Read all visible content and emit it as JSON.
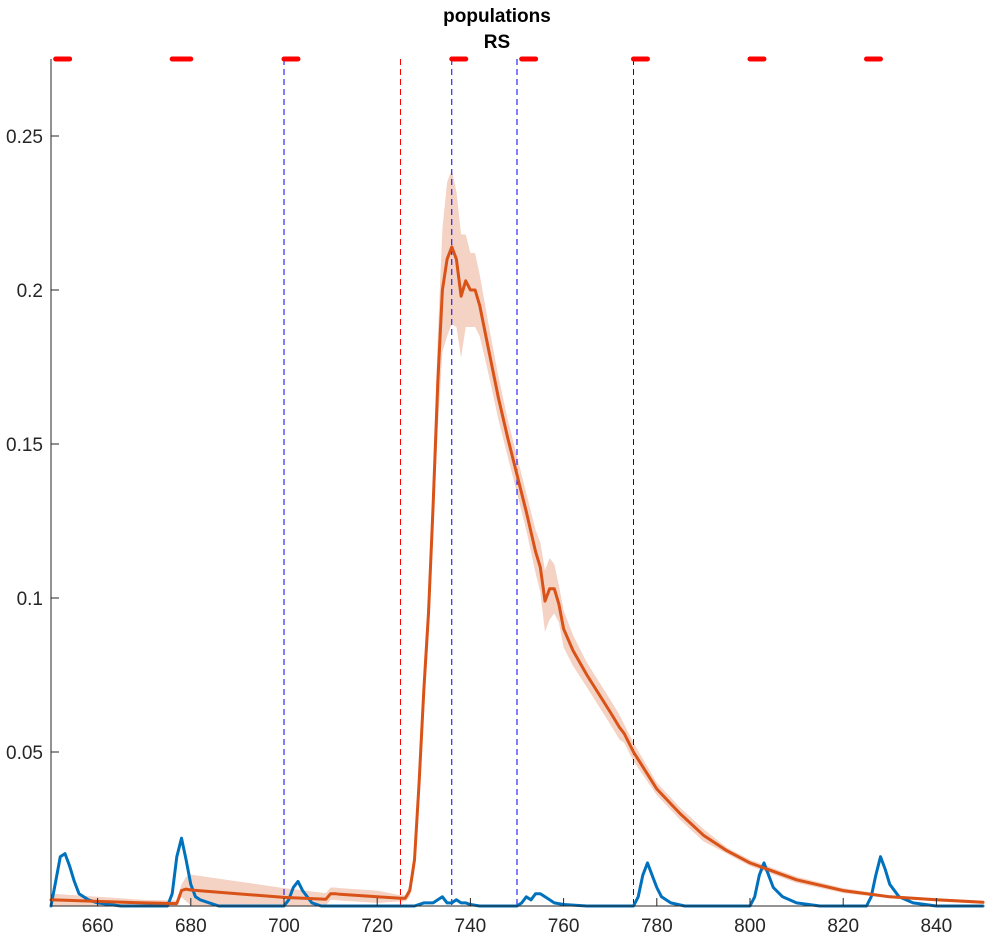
{
  "chart_data": {
    "type": "line",
    "title": "populations",
    "subtitle": "RS",
    "xlabel": "",
    "ylabel": "",
    "xlim": [
      650,
      850
    ],
    "ylim": [
      0,
      0.275
    ],
    "grid": false,
    "legend": "none",
    "x_ticks": [
      660,
      680,
      700,
      720,
      740,
      760,
      780,
      800,
      820,
      840
    ],
    "y_ticks": [
      0.05,
      0.1,
      0.15,
      0.2,
      0.25
    ],
    "y_tick_labels": [
      "0.05",
      "0.1",
      "0.15",
      "0.2",
      "0.25"
    ],
    "colors": {
      "blue_series": "#0072BD",
      "orange_series": "#D95319",
      "orange_band": "#F4D2C4",
      "stimulus_marker": "#FF0000",
      "vline_blue": "#0000FF",
      "vline_red": "#FF0000"
    },
    "vertical_lines": [
      {
        "x": 700,
        "color": "blue"
      },
      {
        "x": 725,
        "color": "red"
      },
      {
        "x": 736,
        "color": "blue"
      },
      {
        "x": 750,
        "color": "blue"
      },
      {
        "x": 775,
        "color": "blue"
      }
    ],
    "stimulus_markers": {
      "y": 0.275,
      "intervals": [
        [
          651,
          654
        ],
        [
          676,
          680
        ],
        [
          700,
          703
        ],
        [
          736,
          739
        ],
        [
          751,
          754
        ],
        [
          775,
          778
        ],
        [
          800,
          803
        ],
        [
          825,
          828
        ]
      ]
    },
    "series": [
      {
        "color": "blue",
        "x": [
          650,
          651,
          652,
          653,
          654,
          655,
          656,
          658,
          660,
          665,
          670,
          675,
          676,
          677,
          678,
          679,
          680,
          681,
          682,
          684,
          686,
          690,
          695,
          700,
          701,
          702,
          703,
          704,
          705,
          706,
          708,
          712,
          720,
          728,
          730,
          732,
          733,
          734,
          735,
          736,
          737,
          738,
          739,
          740,
          742,
          746,
          750,
          751,
          752,
          753,
          754,
          755,
          756,
          757,
          758,
          760,
          765,
          770,
          775,
          776,
          777,
          778,
          779,
          780,
          781,
          783,
          786,
          790,
          795,
          800,
          801,
          802,
          803,
          804,
          805,
          807,
          810,
          815,
          820,
          825,
          826,
          827,
          828,
          829,
          830,
          832,
          835,
          840,
          845,
          850
        ],
        "y": [
          0,
          0.008,
          0.016,
          0.017,
          0.013,
          0.008,
          0.004,
          0.002,
          0.001,
          0,
          0,
          0,
          0.004,
          0.016,
          0.022,
          0.015,
          0.007,
          0.003,
          0.002,
          0.001,
          0,
          0,
          0,
          0,
          0.002,
          0.006,
          0.008,
          0.005,
          0.003,
          0.001,
          0,
          0,
          0,
          0,
          0.001,
          0.001,
          0.002,
          0.003,
          0.001,
          0.001,
          0.002,
          0.001,
          0.001,
          0.0005,
          0,
          0,
          0,
          0.001,
          0.003,
          0.002,
          0.004,
          0.004,
          0.003,
          0.002,
          0.001,
          0.0005,
          0,
          0,
          0,
          0.003,
          0.01,
          0.014,
          0.01,
          0.006,
          0.003,
          0.001,
          0,
          0,
          0,
          0,
          0.003,
          0.01,
          0.014,
          0.01,
          0.006,
          0.003,
          0.001,
          0,
          0,
          0,
          0.003,
          0.01,
          0.016,
          0.012,
          0.007,
          0.003,
          0.001,
          0,
          0,
          0
        ]
      },
      {
        "color": "orange",
        "x": [
          650,
          660,
          670,
          676,
          677,
          678,
          679,
          680,
          690,
          700,
          709,
          710,
          711,
          712,
          720,
          725,
          726,
          727,
          728,
          729,
          730,
          731,
          732,
          733,
          734,
          735,
          736,
          737,
          738,
          739,
          740,
          741,
          742,
          744,
          746,
          748,
          750,
          752,
          754,
          755,
          756,
          757,
          758,
          759,
          760,
          762,
          765,
          770,
          772,
          773,
          775,
          780,
          785,
          790,
          795,
          800,
          810,
          820,
          830,
          840,
          850
        ],
        "y": [
          0.002,
          0.0015,
          0.001,
          0.0008,
          0.0008,
          0.005,
          0.0055,
          0.0052,
          0.004,
          0.0028,
          0.0022,
          0.004,
          0.004,
          0.0038,
          0.003,
          0.0025,
          0.0025,
          0.005,
          0.015,
          0.04,
          0.07,
          0.095,
          0.13,
          0.17,
          0.2,
          0.21,
          0.214,
          0.21,
          0.198,
          0.203,
          0.2,
          0.2,
          0.195,
          0.18,
          0.165,
          0.152,
          0.14,
          0.128,
          0.115,
          0.11,
          0.099,
          0.103,
          0.103,
          0.098,
          0.09,
          0.083,
          0.075,
          0.063,
          0.058,
          0.056,
          0.05,
          0.038,
          0.03,
          0.023,
          0.018,
          0.014,
          0.0085,
          0.005,
          0.003,
          0.002,
          0.0012
        ],
        "band_halfwidth": [
          0.002,
          0.0015,
          0.001,
          0.001,
          0.001,
          0.002,
          0.004,
          0.005,
          0.004,
          0.003,
          0.002,
          0.002,
          0.002,
          0.002,
          0.002,
          0.001,
          0.001,
          0.002,
          0.004,
          0.006,
          0.008,
          0.008,
          0.01,
          0.015,
          0.02,
          0.025,
          0.025,
          0.022,
          0.02,
          0.015,
          0.012,
          0.012,
          0.01,
          0.008,
          0.007,
          0.006,
          0.006,
          0.006,
          0.007,
          0.008,
          0.01,
          0.01,
          0.008,
          0.006,
          0.006,
          0.005,
          0.004,
          0.004,
          0.004,
          0.003,
          0.003,
          0.002,
          0.002,
          0.002,
          0.001,
          0.001,
          0.001,
          0.0008,
          0.0005,
          0.0005,
          0.0005
        ]
      }
    ]
  }
}
